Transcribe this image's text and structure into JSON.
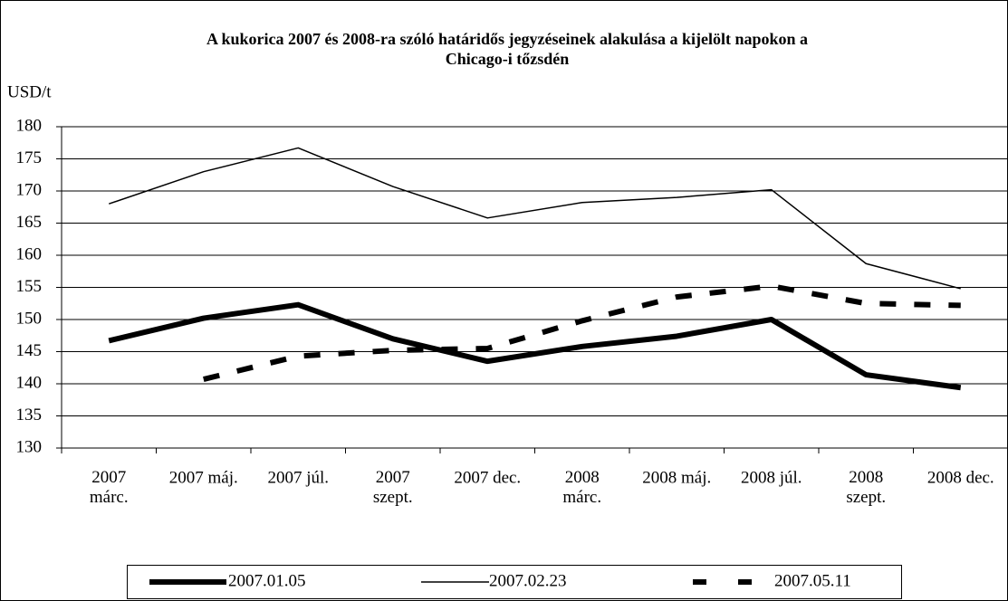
{
  "chart_data": {
    "type": "line",
    "title": "A kukorica 2007 és 2008-ra szóló határidős jegyzéseinek alakulása a kijelölt napokon a\nChicago-i tőzsdén",
    "y_label": "USD/t",
    "categories": [
      "2007\nmárc.",
      "2007 máj.",
      "2007 júl.",
      "2007\nszept.",
      "2007 dec.",
      "2008\nmárc.",
      "2008 máj.",
      "2008 júl.",
      "2008\nszept.",
      "2008 dec."
    ],
    "series": [
      {
        "name": "2007.01.05",
        "color": "#000000",
        "style": "thick",
        "values": [
          146.7,
          150.2,
          152.3,
          147,
          143.5,
          145.8,
          147.4,
          150,
          141.4,
          139.4
        ]
      },
      {
        "name": "2007.02.23",
        "color": "#000000",
        "style": "thin",
        "values": [
          168,
          173,
          176.7,
          170.7,
          165.8,
          168.2,
          169,
          170.2,
          158.7,
          154.8
        ]
      },
      {
        "name": "2007.05.11",
        "color": "#000000",
        "style": "dashed",
        "values": [
          null,
          140.7,
          144.3,
          145.2,
          145.5,
          149.8,
          153.5,
          155.2,
          152.5,
          152.2
        ]
      }
    ],
    "ylim": [
      130,
      180
    ],
    "yticks": [
      130,
      135,
      140,
      145,
      150,
      155,
      160,
      165,
      170,
      175,
      180
    ],
    "grid": true,
    "legend": "bottom"
  }
}
